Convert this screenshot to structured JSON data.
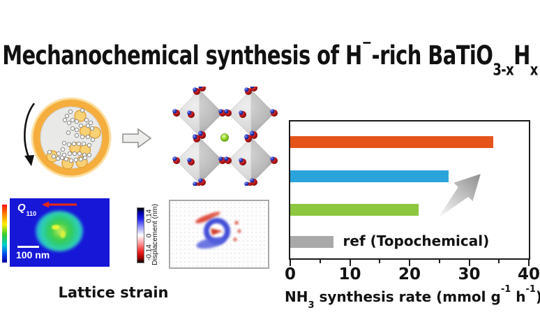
{
  "title": {
    "pre": "Mechanochemical synthesis of H",
    "sup": "−",
    "mid": "-rich BaTiO",
    "sub1": "3-x",
    "h2": "H",
    "sub2": "x"
  },
  "strain_map": {
    "q": "Q",
    "q_sub": "110",
    "scalebar_label": "100 nm",
    "caption": "Lattice strain"
  },
  "displacement_map": {
    "cbar_top": "0.14",
    "cbar_mid": "0",
    "cbar_bottom": "-0.14",
    "cbar_title": "Displacement (nm)"
  },
  "chart_data": {
    "type": "bar",
    "orientation": "horizontal",
    "xlabel": "NH3 synthesis rate (mmol g-1 h-1)",
    "xlabel_parts": {
      "pre": "NH",
      "sub": "3",
      "mid": " synthesis rate (mmol g",
      "sup1": "-1",
      "mid2": " h",
      "sup2": "-1",
      "post": ")"
    },
    "xlim": [
      0,
      40
    ],
    "xticks": [
      0,
      10,
      20,
      30,
      40
    ],
    "minor_xticks": [
      5,
      15,
      25,
      35
    ],
    "grid": false,
    "legend": "none",
    "bars": [
      {
        "value": 34,
        "color": "#e5541a",
        "label": ""
      },
      {
        "value": 26.5,
        "color": "#2ba4dc",
        "label": ""
      },
      {
        "value": 21.5,
        "color": "#8dc63f",
        "label": ""
      },
      {
        "value": 7.2,
        "color": "#a9a9a9",
        "label": "ref (Topochemical)"
      }
    ]
  }
}
